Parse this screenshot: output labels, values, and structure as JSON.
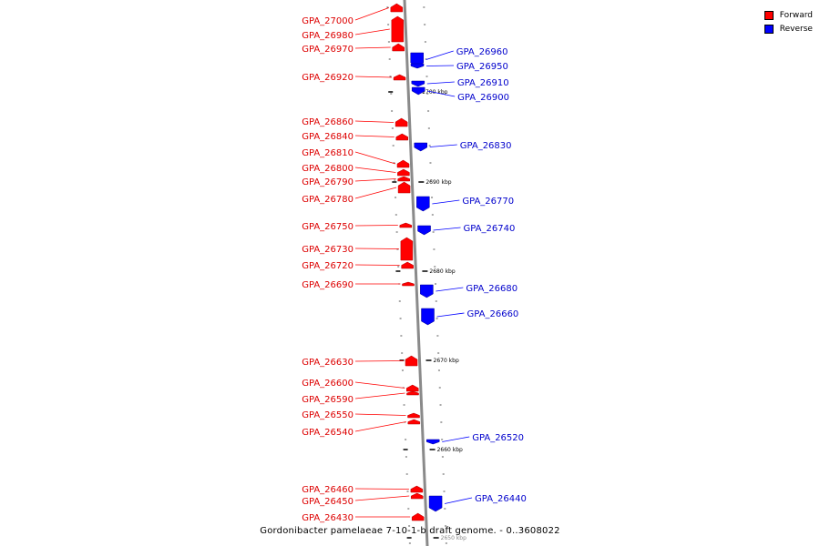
{
  "title": "Gordonibacter pamelaeae 7-10-1-b draft genome. - 0..3608022",
  "colors": {
    "forward": "#ff0000",
    "reverse": "#0000ff",
    "backbone": "#8a8a8a"
  },
  "legend": [
    {
      "label": "Forward",
      "color": "#ff0000"
    },
    {
      "label": "Reverse",
      "color": "#0000ff"
    }
  ],
  "scale_labels": [
    "2700 kbp",
    "2690 kbp",
    "2680 kbp",
    "2670 kbp",
    "2660 kbp",
    "2650 kbp"
  ],
  "forward_genes": [
    "GPA_27000",
    "GPA_26980",
    "GPA_26970",
    "GPA_26920",
    "GPA_26860",
    "GPA_26840",
    "GPA_26810",
    "GPA_26800",
    "GPA_26790",
    "GPA_26780",
    "GPA_26750",
    "GPA_26730",
    "GPA_26720",
    "GPA_26690",
    "GPA_26630",
    "GPA_26600",
    "GPA_26590",
    "GPA_26550",
    "GPA_26540",
    "GPA_26460",
    "GPA_26450",
    "GPA_26430"
  ],
  "reverse_genes": [
    "GPA_26960",
    "GPA_26950",
    "GPA_26910",
    "GPA_26900",
    "GPA_26830",
    "GPA_26770",
    "GPA_26740",
    "GPA_26680",
    "GPA_26660",
    "GPA_26520",
    "GPA_26440"
  ]
}
